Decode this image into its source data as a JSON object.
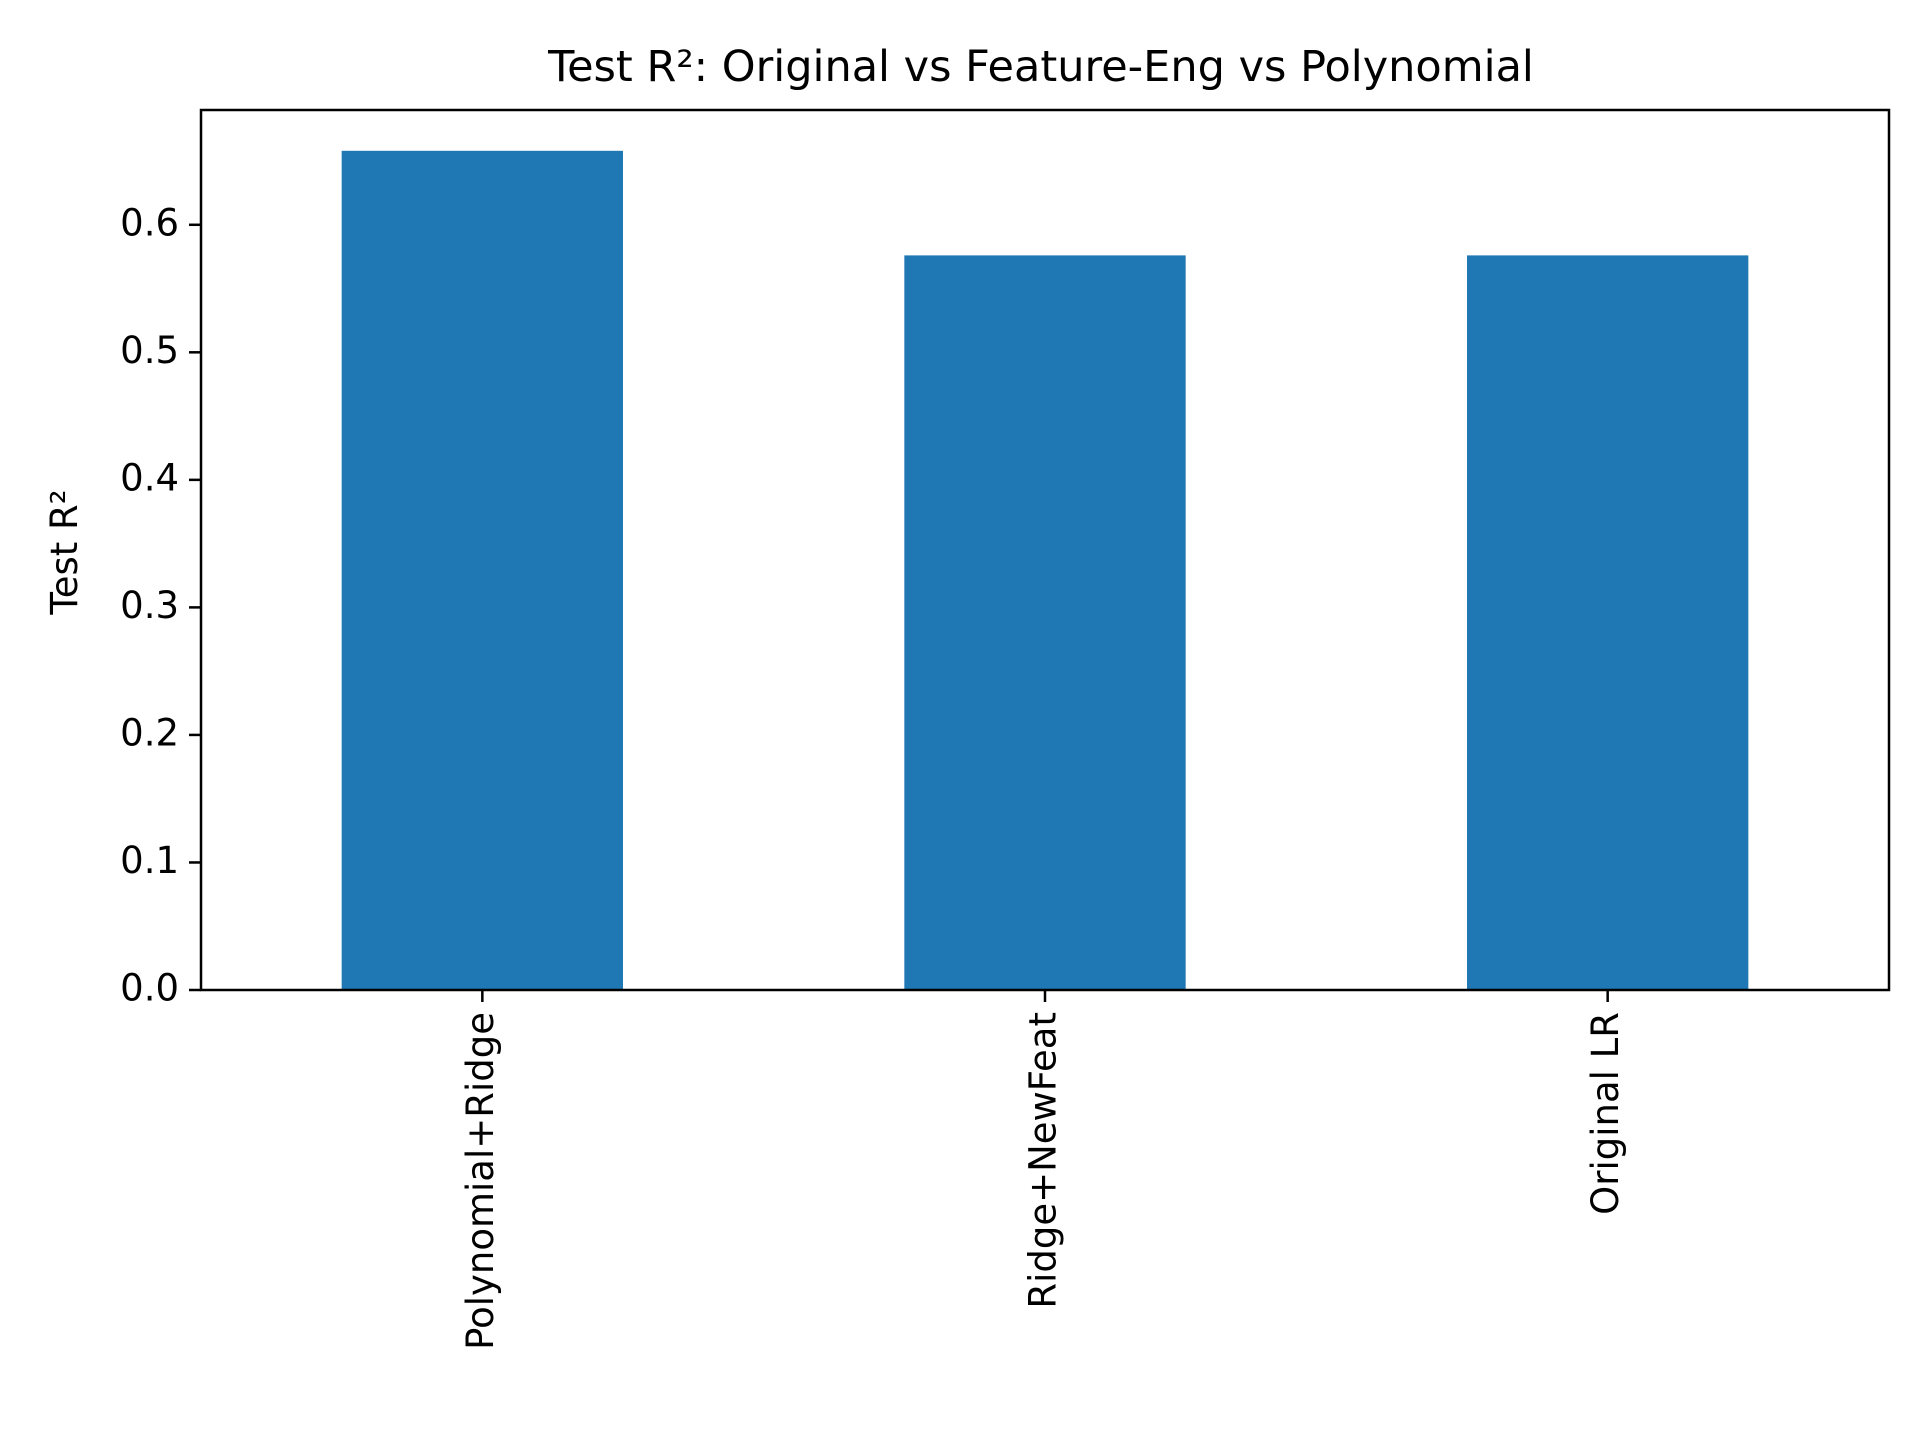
{
  "chart_data": {
    "type": "bar",
    "title": "Test R²: Original vs Feature-Eng vs Polynomial",
    "xlabel": "",
    "ylabel": "Test R²",
    "categories": [
      "Polynomial+Ridge",
      "Ridge+NewFeat",
      "Original LR"
    ],
    "values": [
      0.658,
      0.576,
      0.576
    ],
    "ylim": [
      0,
      0.69
    ],
    "yticks": [
      0.0,
      0.1,
      0.2,
      0.3,
      0.4,
      0.5,
      0.6
    ],
    "ytick_labels": [
      "0.0",
      "0.1",
      "0.2",
      "0.3",
      "0.4",
      "0.5",
      "0.6"
    ],
    "grid": false,
    "legend": "none",
    "bar_color": "#1f77b4",
    "xtick_rotation": "vertical"
  }
}
